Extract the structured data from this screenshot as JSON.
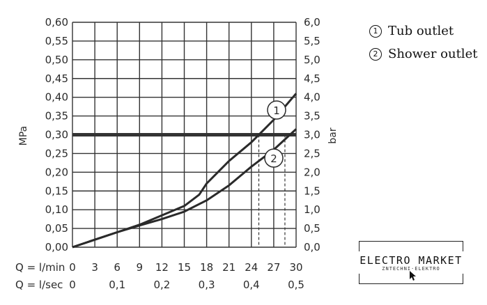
{
  "chart_data": {
    "type": "line",
    "left_axis": {
      "label": "MPa",
      "ylim": [
        0,
        0.6
      ],
      "ticks": [
        "0,00",
        "0,05",
        "0,10",
        "0,15",
        "0,20",
        "0,25",
        "0,30",
        "0,35",
        "0,40",
        "0,45",
        "0,50",
        "0,55",
        "0,60"
      ]
    },
    "right_axis": {
      "label": "bar",
      "ylim": [
        0,
        6.0
      ],
      "ticks": [
        "0,0",
        "0,5",
        "1,0",
        "1,5",
        "2,0",
        "2,5",
        "3,0",
        "3,5",
        "4,0",
        "4,5",
        "5,0",
        "5,5",
        "6,0"
      ]
    },
    "x_axis": {
      "xlim": [
        0,
        30
      ],
      "row1_label": "Q = l/min",
      "row1_ticks": [
        "0",
        "3",
        "6",
        "9",
        "12",
        "15",
        "18",
        "21",
        "24",
        "27",
        "30"
      ],
      "row2_label": "Q = l/sec",
      "row2_ticks": [
        "0",
        "0,1",
        "0,2",
        "0,3",
        "0,4",
        "0,5"
      ]
    },
    "grid": true,
    "reference_line": {
      "y": 0.3
    },
    "series": [
      {
        "name": "Tub outlet",
        "marker": "1",
        "x": [
          0,
          3,
          6,
          9,
          12,
          15,
          17,
          18,
          21,
          24,
          27,
          30
        ],
        "y": [
          0,
          0.02,
          0.04,
          0.06,
          0.085,
          0.11,
          0.14,
          0.17,
          0.23,
          0.28,
          0.34,
          0.41
        ],
        "crossing_x": 25
      },
      {
        "name": "Shower outlet",
        "marker": "2",
        "x": [
          0,
          3,
          6,
          9,
          12,
          15,
          18,
          21,
          24,
          27,
          30
        ],
        "y": [
          0,
          0.02,
          0.04,
          0.058,
          0.075,
          0.095,
          0.125,
          0.165,
          0.215,
          0.26,
          0.315
        ],
        "crossing_x": 28.5
      }
    ]
  },
  "legend": [
    {
      "num": "1",
      "label": "Tub outlet"
    },
    {
      "num": "2",
      "label": "Shower outlet"
    }
  ],
  "logo": {
    "main": "ELECTRO MARKET",
    "sub": "ZNTECHNI·ELEKTRO"
  }
}
